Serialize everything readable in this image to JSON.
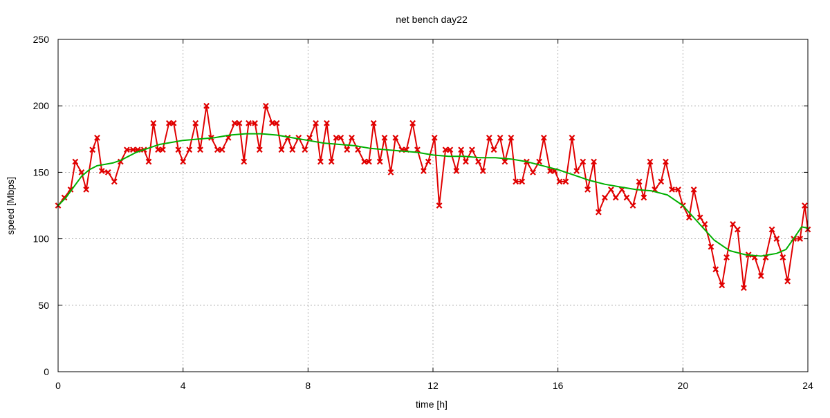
{
  "chart_data": {
    "type": "line",
    "title": "net bench day22",
    "xlabel": "time [h]",
    "ylabel": "speed [Mbps]",
    "xlim": [
      0,
      24
    ],
    "ylim": [
      0,
      250
    ],
    "xticks": [
      0,
      4,
      8,
      12,
      16,
      20,
      24
    ],
    "yticks": [
      0,
      50,
      100,
      150,
      200,
      250
    ],
    "grid": true,
    "series": [
      {
        "color": "#e00000",
        "marker": "x",
        "values": [
          [
            0.0,
            125
          ],
          [
            0.2,
            131
          ],
          [
            0.4,
            137
          ],
          [
            0.55,
            158
          ],
          [
            0.75,
            150
          ],
          [
            0.9,
            137
          ],
          [
            1.1,
            167
          ],
          [
            1.25,
            176
          ],
          [
            1.4,
            151
          ],
          [
            1.6,
            150
          ],
          [
            1.8,
            143
          ],
          [
            2.0,
            158
          ],
          [
            2.2,
            167
          ],
          [
            2.4,
            167
          ],
          [
            2.55,
            167
          ],
          [
            2.75,
            167
          ],
          [
            2.9,
            158
          ],
          [
            3.05,
            187
          ],
          [
            3.2,
            167
          ],
          [
            3.35,
            167
          ],
          [
            3.55,
            187
          ],
          [
            3.7,
            187
          ],
          [
            3.85,
            167
          ],
          [
            4.0,
            158
          ],
          [
            4.2,
            167
          ],
          [
            4.4,
            187
          ],
          [
            4.55,
            167
          ],
          [
            4.75,
            200
          ],
          [
            4.9,
            176
          ],
          [
            5.1,
            167
          ],
          [
            5.25,
            167
          ],
          [
            5.45,
            176
          ],
          [
            5.65,
            187
          ],
          [
            5.8,
            187
          ],
          [
            5.95,
            158
          ],
          [
            6.1,
            187
          ],
          [
            6.3,
            187
          ],
          [
            6.45,
            167
          ],
          [
            6.65,
            200
          ],
          [
            6.85,
            187
          ],
          [
            7.0,
            187
          ],
          [
            7.15,
            167
          ],
          [
            7.35,
            176
          ],
          [
            7.5,
            167
          ],
          [
            7.7,
            176
          ],
          [
            7.9,
            167
          ],
          [
            8.05,
            176
          ],
          [
            8.25,
            187
          ],
          [
            8.4,
            158
          ],
          [
            8.6,
            187
          ],
          [
            8.75,
            158
          ],
          [
            8.9,
            176
          ],
          [
            9.05,
            176
          ],
          [
            9.25,
            167
          ],
          [
            9.4,
            176
          ],
          [
            9.6,
            167
          ],
          [
            9.8,
            158
          ],
          [
            9.95,
            158
          ],
          [
            10.1,
            187
          ],
          [
            10.3,
            158
          ],
          [
            10.45,
            176
          ],
          [
            10.65,
            150
          ],
          [
            10.8,
            176
          ],
          [
            11.0,
            167
          ],
          [
            11.15,
            167
          ],
          [
            11.35,
            187
          ],
          [
            11.5,
            167
          ],
          [
            11.7,
            151
          ],
          [
            11.85,
            158
          ],
          [
            12.05,
            176
          ],
          [
            12.2,
            125
          ],
          [
            12.4,
            167
          ],
          [
            12.55,
            167
          ],
          [
            12.75,
            151
          ],
          [
            12.9,
            167
          ],
          [
            13.05,
            158
          ],
          [
            13.25,
            167
          ],
          [
            13.45,
            158
          ],
          [
            13.6,
            151
          ],
          [
            13.8,
            176
          ],
          [
            13.95,
            167
          ],
          [
            14.15,
            176
          ],
          [
            14.3,
            158
          ],
          [
            14.5,
            176
          ],
          [
            14.65,
            143
          ],
          [
            14.85,
            143
          ],
          [
            15.0,
            158
          ],
          [
            15.2,
            150
          ],
          [
            15.4,
            158
          ],
          [
            15.55,
            176
          ],
          [
            15.75,
            151
          ],
          [
            15.9,
            151
          ],
          [
            16.05,
            143
          ],
          [
            16.25,
            143
          ],
          [
            16.45,
            176
          ],
          [
            16.6,
            151
          ],
          [
            16.8,
            158
          ],
          [
            16.95,
            137
          ],
          [
            17.15,
            158
          ],
          [
            17.3,
            120
          ],
          [
            17.5,
            131
          ],
          [
            17.7,
            137
          ],
          [
            17.85,
            131
          ],
          [
            18.05,
            137
          ],
          [
            18.2,
            131
          ],
          [
            18.4,
            125
          ],
          [
            18.6,
            143
          ],
          [
            18.75,
            131
          ],
          [
            18.95,
            158
          ],
          [
            19.1,
            137
          ],
          [
            19.3,
            143
          ],
          [
            19.45,
            158
          ],
          [
            19.65,
            137
          ],
          [
            19.85,
            137
          ],
          [
            20.0,
            125
          ],
          [
            20.2,
            116
          ],
          [
            20.35,
            137
          ],
          [
            20.55,
            116
          ],
          [
            20.7,
            111
          ],
          [
            20.9,
            94
          ],
          [
            21.05,
            77
          ],
          [
            21.25,
            65
          ],
          [
            21.4,
            86
          ],
          [
            21.6,
            111
          ],
          [
            21.75,
            107
          ],
          [
            21.95,
            63
          ],
          [
            22.1,
            88
          ],
          [
            22.3,
            86
          ],
          [
            22.5,
            72
          ],
          [
            22.65,
            86
          ],
          [
            22.85,
            107
          ],
          [
            23.0,
            100
          ],
          [
            23.2,
            86
          ],
          [
            23.35,
            68
          ],
          [
            23.55,
            100
          ],
          [
            23.75,
            100
          ],
          [
            23.9,
            125
          ],
          [
            24.0,
            107
          ]
        ]
      },
      {
        "color": "#00b000",
        "marker": "none",
        "values": [
          [
            0.0,
            125
          ],
          [
            0.25,
            131
          ],
          [
            0.5,
            139
          ],
          [
            0.75,
            147
          ],
          [
            1.0,
            152
          ],
          [
            1.25,
            155
          ],
          [
            1.5,
            156
          ],
          [
            1.75,
            157
          ],
          [
            2.0,
            159
          ],
          [
            2.25,
            162
          ],
          [
            2.5,
            165
          ],
          [
            2.75,
            167
          ],
          [
            3.0,
            169
          ],
          [
            3.25,
            171
          ],
          [
            3.5,
            172
          ],
          [
            4.0,
            174
          ],
          [
            4.5,
            175
          ],
          [
            5.0,
            176
          ],
          [
            5.5,
            178
          ],
          [
            6.0,
            179
          ],
          [
            6.5,
            179
          ],
          [
            7.0,
            178
          ],
          [
            7.5,
            176
          ],
          [
            8.0,
            174
          ],
          [
            8.5,
            172
          ],
          [
            9.0,
            171
          ],
          [
            9.5,
            170
          ],
          [
            10.0,
            168
          ],
          [
            10.5,
            167
          ],
          [
            11.0,
            166
          ],
          [
            11.5,
            165
          ],
          [
            12.0,
            163
          ],
          [
            12.5,
            162
          ],
          [
            13.0,
            162
          ],
          [
            13.5,
            161
          ],
          [
            14.0,
            161
          ],
          [
            14.5,
            160
          ],
          [
            15.0,
            158
          ],
          [
            15.5,
            155
          ],
          [
            16.0,
            152
          ],
          [
            16.5,
            148
          ],
          [
            17.0,
            144
          ],
          [
            17.5,
            141
          ],
          [
            18.0,
            139
          ],
          [
            18.5,
            137
          ],
          [
            19.0,
            136
          ],
          [
            19.5,
            133
          ],
          [
            20.0,
            125
          ],
          [
            20.5,
            112
          ],
          [
            21.0,
            99
          ],
          [
            21.5,
            91
          ],
          [
            22.0,
            88
          ],
          [
            22.5,
            87
          ],
          [
            23.0,
            89
          ],
          [
            23.3,
            92
          ],
          [
            23.6,
            102
          ],
          [
            23.8,
            109
          ],
          [
            24.0,
            108
          ]
        ]
      }
    ]
  }
}
